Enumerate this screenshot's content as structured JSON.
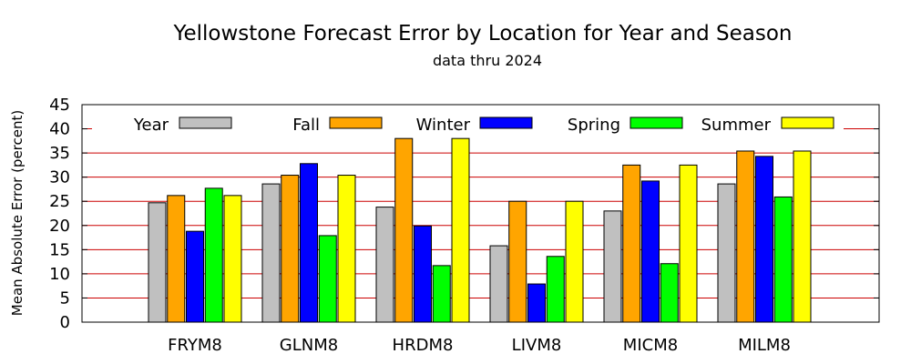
{
  "chart_data": {
    "type": "bar",
    "title": "Yellowstone Forecast Error by Location for Year and Season",
    "subtitle": "data thru 2024",
    "xlabel": "",
    "ylabel": "Mean Absolute Error (percent)",
    "ylim": [
      0,
      45
    ],
    "yticks": [
      "0",
      "5",
      "10",
      "15",
      "20",
      "25",
      "30",
      "35",
      "40",
      "45"
    ],
    "grid": "horizontal",
    "legend_position": "top",
    "categories": [
      "FRYM8",
      "GLNM8",
      "HRDM8",
      "LIVM8",
      "MICM8",
      "MILM8"
    ],
    "series": [
      {
        "name": "Year",
        "color": "#c0c0c0",
        "values": [
          24.7,
          28.6,
          23.8,
          15.8,
          23.0,
          28.6
        ]
      },
      {
        "name": "Fall",
        "color": "#ffa500",
        "values": [
          26.2,
          30.4,
          38.0,
          25.0,
          32.5,
          35.4
        ]
      },
      {
        "name": "Winter",
        "color": "#0000ff",
        "values": [
          18.8,
          32.8,
          19.9,
          7.9,
          29.2,
          34.3
        ]
      },
      {
        "name": "Spring",
        "color": "#00ff00",
        "values": [
          27.7,
          17.9,
          11.7,
          13.6,
          12.1,
          25.9
        ]
      },
      {
        "name": "Summer",
        "color": "#ffff00",
        "values": [
          26.2,
          30.4,
          38.0,
          25.0,
          32.5,
          35.4
        ]
      }
    ],
    "colors": {
      "grid": "#cc0000",
      "axis": "#000000",
      "bar_outline": "#000000"
    }
  }
}
